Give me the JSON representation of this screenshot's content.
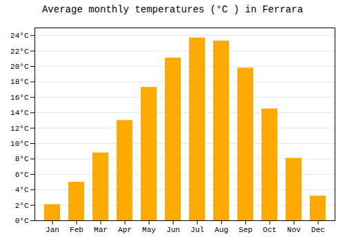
{
  "chart_data": {
    "type": "bar",
    "title": "Average monthly temperatures (°C ) in Ferrara",
    "categories": [
      "Jan",
      "Feb",
      "Mar",
      "Apr",
      "May",
      "Jun",
      "Jul",
      "Aug",
      "Sep",
      "Oct",
      "Nov",
      "Dec"
    ],
    "values": [
      2.1,
      5.0,
      8.8,
      13.0,
      17.3,
      21.1,
      23.7,
      23.3,
      19.8,
      14.5,
      8.1,
      3.2
    ],
    "color": "#FFAA00",
    "ylim": [
      0,
      25
    ],
    "yticks": [
      {
        "value": 0,
        "label": "0°C"
      },
      {
        "value": 2,
        "label": "2°C"
      },
      {
        "value": 4,
        "label": "4°C"
      },
      {
        "value": 6,
        "label": "6°C"
      },
      {
        "value": 8,
        "label": "8°C"
      },
      {
        "value": 10,
        "label": "10°C"
      },
      {
        "value": 12,
        "label": "12°C"
      },
      {
        "value": 14,
        "label": "14°C"
      },
      {
        "value": 16,
        "label": "16°C"
      },
      {
        "value": 18,
        "label": "18°C"
      },
      {
        "value": 20,
        "label": "20°C"
      },
      {
        "value": 22,
        "label": "22°C"
      },
      {
        "value": 24,
        "label": "24°C"
      }
    ],
    "grid": true
  }
}
